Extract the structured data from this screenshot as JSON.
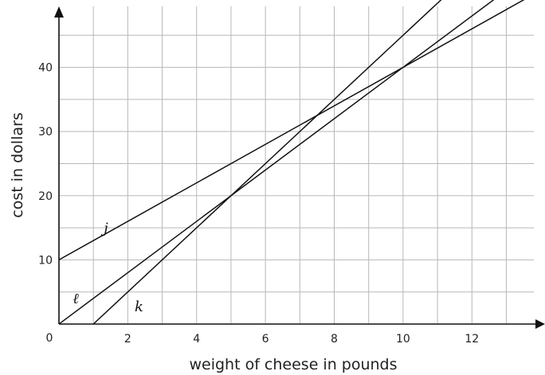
{
  "chart_data": {
    "type": "line",
    "xlabel": "weight of cheese in pounds",
    "ylabel": "cost in dollars",
    "xlim": [
      0,
      13.8
    ],
    "ylim": [
      0,
      49.5
    ],
    "origin_label": "0",
    "x_ticks": [
      2,
      4,
      6,
      8,
      10,
      12
    ],
    "y_ticks": [
      10,
      20,
      30,
      40
    ],
    "grid": true,
    "grid_x_step": 1,
    "grid_y_step": 5,
    "series": [
      {
        "name": "j",
        "x": [
          0,
          13.8
        ],
        "y": [
          10,
          51.4
        ],
        "label_at": [
          1.3,
          14.2
        ]
      },
      {
        "name": "ℓ",
        "x": [
          0,
          13.8
        ],
        "y": [
          0,
          55.2
        ],
        "label_at": [
          0.4,
          3.2
        ]
      },
      {
        "name": "k",
        "x": [
          1,
          13.8
        ],
        "y": [
          0,
          64
        ],
        "label_at": [
          2.2,
          2.0
        ]
      }
    ]
  }
}
